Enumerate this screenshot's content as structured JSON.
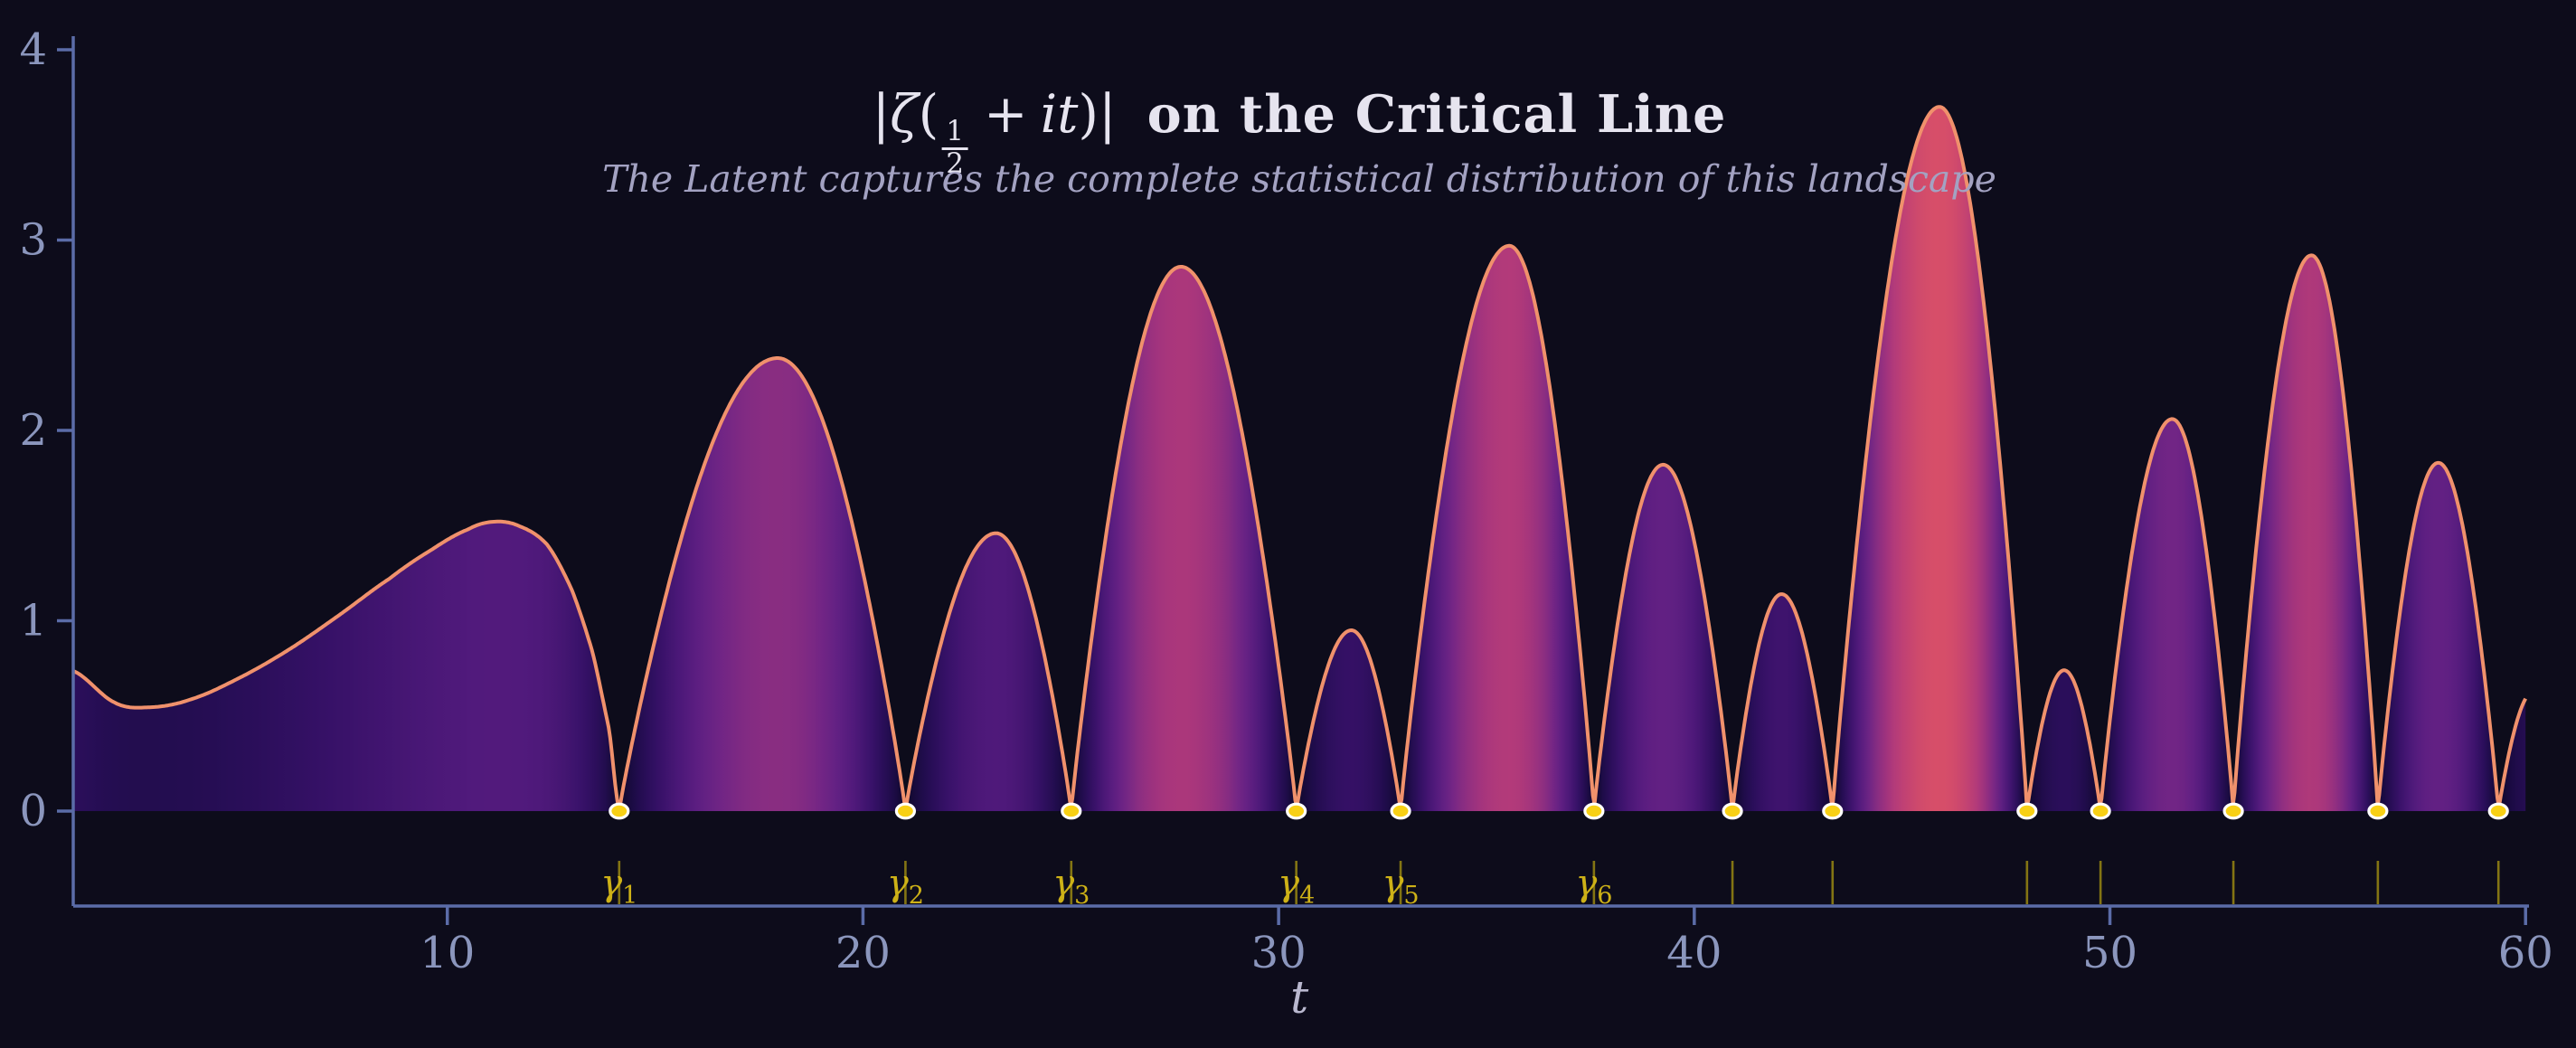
{
  "figure": {
    "background": "#0d0c1b"
  },
  "title": {
    "bar_open": "|",
    "zeta": "ζ",
    "paren_open": "(",
    "frac_num": "1",
    "frac_den": "2",
    "plus": "+",
    "it": "it",
    "paren_close": ")|",
    "bold_text": "on the Critical Line",
    "color": "#e6e4ef"
  },
  "subtitle": {
    "text": "The Latent captures the complete statistical distribution of this landscape",
    "color": "#a3a2c2"
  },
  "axes": {
    "xlabel": "t",
    "x_ticks": [
      "10",
      "20",
      "30",
      "40",
      "50",
      "60"
    ],
    "y_ticks": [
      "0",
      "1",
      "2",
      "3",
      "4"
    ],
    "spine_color": "#5b6ca8",
    "tick_label_color": "#8b96bd",
    "xlabel_color": "#b9b8cf"
  },
  "zero_markers": {
    "symbol": "γ",
    "labeled_count": 6,
    "tick_color": "#837413",
    "label_color": "#cdb117",
    "dot_fill": "#f8d015",
    "dot_edge": "#ffffff"
  },
  "chart_data": {
    "type": "area",
    "title": "|ζ(1/2 + it)| on the Critical Line",
    "subtitle": "The Latent captures the complete statistical distribution of this landscape",
    "xlabel": "t",
    "ylabel": "",
    "xlim": [
      1,
      60
    ],
    "ylim": [
      0,
      4
    ],
    "grid": false,
    "series_name": "|ζ(1/2 + it)|",
    "zeros_t": [
      14.1347,
      21.022,
      25.0109,
      30.4249,
      32.9351,
      37.5862,
      40.9187,
      43.3271,
      48.0052,
      49.7738,
      52.9703,
      56.4462,
      59.347
    ],
    "head_profile": [
      [
        1,
        0.736
      ],
      [
        2,
        0.57
      ],
      [
        2.8,
        0.545
      ],
      [
        3.8,
        0.585
      ],
      [
        5,
        0.7
      ],
      [
        6.2,
        0.85
      ],
      [
        7.4,
        1.03
      ],
      [
        8.6,
        1.22
      ],
      [
        9.6,
        1.37
      ],
      [
        10.5,
        1.48
      ],
      [
        11.1,
        1.52
      ],
      [
        11.7,
        1.5
      ],
      [
        12.4,
        1.4
      ],
      [
        13.0,
        1.16
      ],
      [
        13.5,
        0.83
      ],
      [
        13.9,
        0.42
      ],
      [
        14.1347,
        0
      ]
    ],
    "arches": [
      {
        "from": 14.1347,
        "to": 21.022,
        "peak_t": 17.95,
        "peak": 2.38
      },
      {
        "from": 21.022,
        "to": 25.0109,
        "peak_t": 23.2,
        "peak": 1.46
      },
      {
        "from": 25.0109,
        "to": 30.4249,
        "peak_t": 27.65,
        "peak": 2.86
      },
      {
        "from": 30.4249,
        "to": 32.9351,
        "peak_t": 31.75,
        "peak": 0.95
      },
      {
        "from": 32.9351,
        "to": 37.5862,
        "peak_t": 35.55,
        "peak": 2.97
      },
      {
        "from": 37.5862,
        "to": 40.9187,
        "peak_t": 39.25,
        "peak": 1.82
      },
      {
        "from": 40.9187,
        "to": 43.3271,
        "peak_t": 42.1,
        "peak": 1.14
      },
      {
        "from": 43.3271,
        "to": 48.0052,
        "peak_t": 45.9,
        "peak": 3.7
      },
      {
        "from": 48.0052,
        "to": 49.7738,
        "peak_t": 48.9,
        "peak": 0.74
      },
      {
        "from": 49.7738,
        "to": 52.9703,
        "peak_t": 51.5,
        "peak": 2.06
      },
      {
        "from": 52.9703,
        "to": 56.4462,
        "peak_t": 54.85,
        "peak": 2.92
      },
      {
        "from": 56.4462,
        "to": 59.347,
        "peak_t": 57.9,
        "peak": 1.83
      },
      {
        "from": 59.347,
        "to": 60.8318,
        "peak_t": 60.2,
        "peak": 0.63
      }
    ],
    "line_color": "#f0916c",
    "colormap": [
      [
        0.0,
        "#0d0724"
      ],
      [
        0.35,
        "#1b0b44"
      ],
      [
        0.7,
        "#290e58"
      ],
      [
        1.0,
        "#371168"
      ],
      [
        1.5,
        "#511a7c"
      ],
      [
        1.8,
        "#612083"
      ],
      [
        2.1,
        "#742685"
      ],
      [
        2.4,
        "#8b2e81"
      ],
      [
        2.7,
        "#a0337e"
      ],
      [
        3.0,
        "#b53b79"
      ],
      [
        3.35,
        "#c54471"
      ],
      [
        3.72,
        "#d84f68"
      ]
    ]
  }
}
